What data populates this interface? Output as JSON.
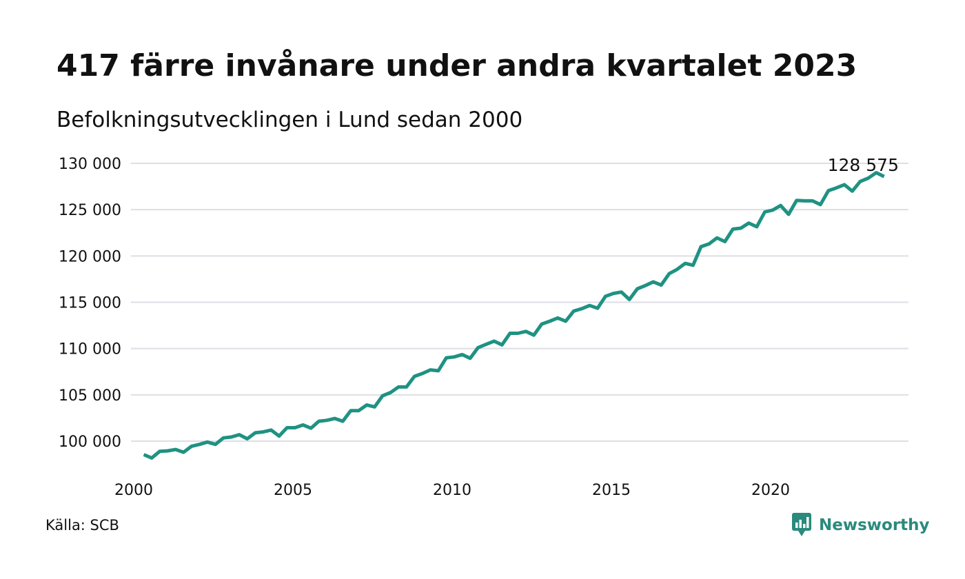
{
  "title": "417 färre invånare under andra kvartalet 2023",
  "subtitle": "Befolkningsutvecklingen i Lund sedan 2000",
  "source": "Källa: SCB",
  "brand": {
    "name": "Newsworthy",
    "icon": "newsworthy-logo-icon",
    "color": "#2a8a7c"
  },
  "colors": {
    "line": "#1f9282",
    "grid": "#dedee4",
    "text": "#111111"
  },
  "chart_data": {
    "type": "line",
    "title": "417 färre invånare under andra kvartalet 2023",
    "subtitle": "Befolkningsutvecklingen i Lund sedan 2000",
    "xlabel": "",
    "ylabel": "",
    "xlim": [
      2000,
      2024
    ],
    "ylim": [
      97500,
      130000
    ],
    "x_ticks": [
      2000,
      2005,
      2010,
      2015,
      2020
    ],
    "x_tick_labels": [
      "2000",
      "2005",
      "2010",
      "2015",
      "2020"
    ],
    "y_ticks": [
      100000,
      105000,
      110000,
      115000,
      120000,
      125000,
      130000
    ],
    "y_tick_labels": [
      "100 000",
      "105 000",
      "110 000",
      "115 000",
      "120 000",
      "125 000",
      "130 000"
    ],
    "grid": true,
    "legend": "none",
    "end_label": "128 575",
    "series": [
      {
        "x": [
          2000.25,
          2000.5,
          2000.75,
          2001.0,
          2001.25,
          2001.5,
          2001.75,
          2002.0,
          2002.25,
          2002.5,
          2002.75,
          2003.0,
          2003.25,
          2003.5,
          2003.75,
          2004.0,
          2004.25,
          2004.5,
          2004.75,
          2005.0,
          2005.25,
          2005.5,
          2005.75,
          2006.0,
          2006.25,
          2006.5,
          2006.75,
          2007.0,
          2007.25,
          2007.5,
          2007.75,
          2008.0,
          2008.25,
          2008.5,
          2008.75,
          2009.0,
          2009.25,
          2009.5,
          2009.75,
          2010.0,
          2010.25,
          2010.5,
          2010.75,
          2011.0,
          2011.25,
          2011.5,
          2011.75,
          2012.0,
          2012.25,
          2012.5,
          2012.75,
          2013.0,
          2013.25,
          2013.5,
          2013.75,
          2014.0,
          2014.25,
          2014.5,
          2014.75,
          2015.0,
          2015.25,
          2015.5,
          2015.75,
          2016.0,
          2016.25,
          2016.5,
          2016.75,
          2017.0,
          2017.25,
          2017.5,
          2017.75,
          2018.0,
          2018.25,
          2018.5,
          2018.75,
          2019.0,
          2019.25,
          2019.5,
          2019.75,
          2020.0,
          2020.25,
          2020.5,
          2020.75,
          2021.0,
          2021.25,
          2021.5,
          2021.75,
          2022.0,
          2022.25,
          2022.5,
          2022.75,
          2023.0,
          2023.25,
          2023.5
        ],
        "values": [
          98550,
          98180,
          98900,
          98950,
          99100,
          98800,
          99450,
          99650,
          99900,
          99650,
          100350,
          100450,
          100700,
          100250,
          100900,
          101000,
          101200,
          100550,
          101450,
          101450,
          101750,
          101400,
          102150,
          102250,
          102450,
          102150,
          103300,
          103300,
          103900,
          103700,
          104900,
          105250,
          105850,
          105850,
          107000,
          107300,
          107700,
          107600,
          109000,
          109100,
          109350,
          108950,
          110100,
          110450,
          110800,
          110400,
          111650,
          111650,
          111850,
          111450,
          112650,
          112950,
          113300,
          112950,
          114050,
          114300,
          114650,
          114350,
          115650,
          115950,
          116100,
          115300,
          116450,
          116800,
          117200,
          116850,
          118100,
          118550,
          119200,
          119000,
          121000,
          121300,
          121950,
          121550,
          122900,
          123000,
          123550,
          123150,
          124750,
          124950,
          125450,
          124500,
          126000,
          125950,
          125950,
          125550,
          127050,
          127350,
          127700,
          127000,
          128050,
          128400,
          128992,
          128575
        ]
      }
    ]
  }
}
